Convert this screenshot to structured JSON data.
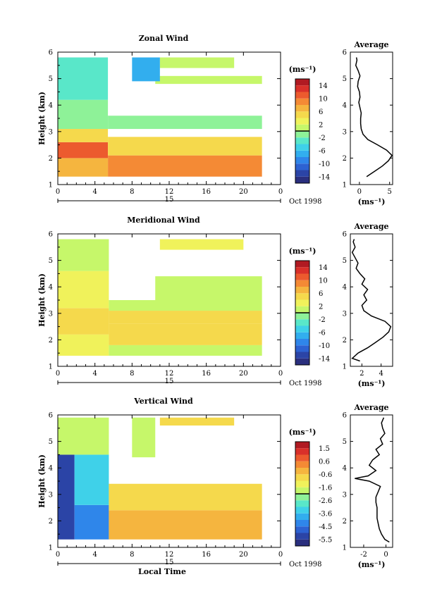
{
  "chart_data": [
    {
      "type": "heatmap",
      "title": "Zonal Wind",
      "ylabel": "Height (km)",
      "xlabel": "",
      "x_ticks": [
        "0",
        "4",
        "8",
        "12",
        "16",
        "20",
        "0"
      ],
      "y_ticks": [
        "1",
        "2",
        "3",
        "4",
        "5",
        "6"
      ],
      "xlim": [
        0,
        24
      ],
      "ylim": [
        1,
        6
      ],
      "date_label": "15",
      "date_suffix": "Oct 1998",
      "colorbar": {
        "unit": "(ms⁻¹)",
        "ticks": [
          "14",
          "10",
          "6",
          "2",
          "-2",
          "-6",
          "-10",
          "-14"
        ],
        "range": [
          -16,
          16
        ]
      },
      "cells": [
        {
          "t0": 0,
          "t1": 5.4,
          "z0": 1.3,
          "z1": 2.0,
          "v": 6
        },
        {
          "t0": 0,
          "t1": 5.4,
          "z0": 2.0,
          "z1": 2.6,
          "v": 11
        },
        {
          "t0": 0,
          "t1": 5.4,
          "z0": 2.6,
          "z1": 3.1,
          "v": 4
        },
        {
          "t0": 0,
          "t1": 5.4,
          "z0": 3.1,
          "z1": 4.2,
          "v": -1
        },
        {
          "t0": 0,
          "t1": 5.4,
          "z0": 4.2,
          "z1": 5.8,
          "v": -3
        },
        {
          "t0": 5.4,
          "t1": 22,
          "z0": 1.3,
          "z1": 2.1,
          "v": 9
        },
        {
          "t0": 5.4,
          "t1": 22,
          "z0": 2.1,
          "z1": 2.8,
          "v": 5
        },
        {
          "t0": 5.4,
          "t1": 22,
          "z0": 3.1,
          "z1": 3.6,
          "v": -1
        },
        {
          "t0": 10.5,
          "t1": 22,
          "z0": 4.8,
          "z1": 5.1,
          "v": 1
        },
        {
          "t0": 11,
          "t1": 19,
          "z0": 5.4,
          "z1": 5.8,
          "v": 0
        },
        {
          "t0": 8,
          "t1": 11,
          "z0": 4.9,
          "z1": 5.8,
          "v": -8
        }
      ],
      "profile": {
        "title": "Average",
        "unit": "(ms⁻¹)",
        "x_ticks": [
          "0",
          "5"
        ],
        "xlim": [
          -1.5,
          5.5
        ],
        "height": [
          1.3,
          1.5,
          1.7,
          1.9,
          2.1,
          2.3,
          2.5,
          2.7,
          2.9,
          3.1,
          3.3,
          3.5,
          3.7,
          3.9,
          4.1,
          4.3,
          4.5,
          4.7,
          4.9,
          5.1,
          5.3,
          5.5,
          5.7,
          5.8
        ],
        "value": [
          1.2,
          2.5,
          3.8,
          4.8,
          5.4,
          4.5,
          3.0,
          1.4,
          0.6,
          0.3,
          0.2,
          0.2,
          0.3,
          0.1,
          -0.1,
          0.1,
          0.0,
          -0.3,
          -0.2,
          0.1,
          -0.2,
          -0.6,
          -0.4,
          -0.5
        ]
      }
    },
    {
      "type": "heatmap",
      "title": "Meridional Wind",
      "ylabel": "Height (km)",
      "xlabel": "",
      "x_ticks": [
        "0",
        "4",
        "8",
        "12",
        "16",
        "20",
        "0"
      ],
      "y_ticks": [
        "1",
        "2",
        "3",
        "4",
        "5",
        "6"
      ],
      "xlim": [
        0,
        24
      ],
      "ylim": [
        1,
        6
      ],
      "date_label": "15",
      "date_suffix": "Oct 1998",
      "colorbar": {
        "unit": "(ms⁻¹)",
        "ticks": [
          "14",
          "10",
          "6",
          "2",
          "-2",
          "-6",
          "-10",
          "-14"
        ],
        "range": [
          -16,
          16
        ]
      },
      "cells": [
        {
          "t0": 0,
          "t1": 5.5,
          "z0": 1.4,
          "z1": 2.2,
          "v": 3
        },
        {
          "t0": 0,
          "t1": 5.5,
          "z0": 2.2,
          "z1": 3.2,
          "v": 4
        },
        {
          "t0": 0,
          "t1": 5.5,
          "z0": 3.2,
          "z1": 4.6,
          "v": 2
        },
        {
          "t0": 0,
          "t1": 5.5,
          "z0": 4.6,
          "z1": 5.8,
          "v": 0
        },
        {
          "t0": 5.5,
          "t1": 22,
          "z0": 1.4,
          "z1": 1.8,
          "v": 1
        },
        {
          "t0": 5.5,
          "t1": 22,
          "z0": 1.8,
          "z1": 2.6,
          "v": 5
        },
        {
          "t0": 5.5,
          "t1": 22,
          "z0": 2.6,
          "z1": 3.1,
          "v": 4
        },
        {
          "t0": 5.5,
          "t1": 22,
          "z0": 3.1,
          "z1": 3.5,
          "v": 0
        },
        {
          "t0": 10.5,
          "t1": 22,
          "z0": 3.5,
          "z1": 4.4,
          "v": 1
        },
        {
          "t0": 11,
          "t1": 20,
          "z0": 5.4,
          "z1": 5.8,
          "v": 2
        }
      ],
      "profile": {
        "title": "Average",
        "unit": "(ms⁻¹)",
        "x_ticks": [
          "2",
          "4"
        ],
        "xlim": [
          0.8,
          5.2
        ],
        "height": [
          1.2,
          1.3,
          1.5,
          1.7,
          1.9,
          2.1,
          2.3,
          2.5,
          2.7,
          2.9,
          3.1,
          3.3,
          3.5,
          3.7,
          3.9,
          4.1,
          4.3,
          4.5,
          4.7,
          4.9,
          5.1,
          5.3,
          5.5,
          5.7,
          5.8
        ],
        "value": [
          1.8,
          1.0,
          1.6,
          2.6,
          3.4,
          4.2,
          4.8,
          5.0,
          4.4,
          3.0,
          2.2,
          2.0,
          2.5,
          2.2,
          2.6,
          2.0,
          2.3,
          1.8,
          1.4,
          1.6,
          1.3,
          1.0,
          1.3,
          1.1,
          1.2
        ]
      }
    },
    {
      "type": "heatmap",
      "title": "Vertical Wind",
      "ylabel": "Height (km)",
      "xlabel": "Local Time",
      "x_ticks": [
        "0",
        "4",
        "8",
        "12",
        "16",
        "20",
        "0"
      ],
      "y_ticks": [
        "1",
        "2",
        "3",
        "4",
        "5",
        "6"
      ],
      "xlim": [
        0,
        24
      ],
      "ylim": [
        1,
        6
      ],
      "date_label": "15",
      "date_suffix": "Oct 1998",
      "colorbar": {
        "unit": "(ms⁻¹)",
        "ticks": [
          "1.5",
          "0.6",
          "-0.6",
          "-1.6",
          "-2.6",
          "-3.6",
          "-4.5",
          "-5.5"
        ],
        "range": [
          -6.0,
          2.0
        ]
      },
      "cells": [
        {
          "t0": 0,
          "t1": 1.8,
          "z0": 1.3,
          "z1": 4.5,
          "v": -5.2
        },
        {
          "t0": 1.8,
          "t1": 5.5,
          "z0": 1.3,
          "z1": 2.6,
          "v": -4.2
        },
        {
          "t0": 1.8,
          "t1": 5.5,
          "z0": 2.6,
          "z1": 4.5,
          "v": -3.3
        },
        {
          "t0": 0,
          "t1": 5.5,
          "z0": 4.5,
          "z1": 5.9,
          "v": -2.0
        },
        {
          "t0": 5.5,
          "t1": 22,
          "z0": 1.3,
          "z1": 2.4,
          "v": -0.5
        },
        {
          "t0": 5.5,
          "t1": 22,
          "z0": 2.4,
          "z1": 3.4,
          "v": -0.8
        },
        {
          "t0": 8,
          "t1": 10.5,
          "z0": 4.4,
          "z1": 5.9,
          "v": -2.0
        },
        {
          "t0": 11,
          "t1": 19,
          "z0": 5.6,
          "z1": 5.9,
          "v": -0.9
        }
      ],
      "profile": {
        "title": "Average",
        "unit": "(ms⁻¹)",
        "x_ticks": [
          "-2",
          "0"
        ],
        "xlim": [
          -3.2,
          0.6
        ],
        "height": [
          1.2,
          1.3,
          1.5,
          1.7,
          1.9,
          2.1,
          2.3,
          2.5,
          2.7,
          2.9,
          3.1,
          3.3,
          3.5,
          3.6,
          3.7,
          3.9,
          4.1,
          4.3,
          4.5,
          4.7,
          4.9,
          5.1,
          5.3,
          5.5,
          5.7,
          5.9
        ],
        "value": [
          0.3,
          -0.1,
          -0.4,
          -0.6,
          -0.7,
          -0.8,
          -0.8,
          -0.8,
          -0.9,
          -0.9,
          -0.7,
          -0.5,
          -1.5,
          -2.8,
          -1.6,
          -0.9,
          -1.5,
          -1.2,
          -0.6,
          -0.9,
          -0.3,
          -0.5,
          -0.1,
          -0.3,
          -0.4,
          -0.2
        ]
      }
    }
  ]
}
